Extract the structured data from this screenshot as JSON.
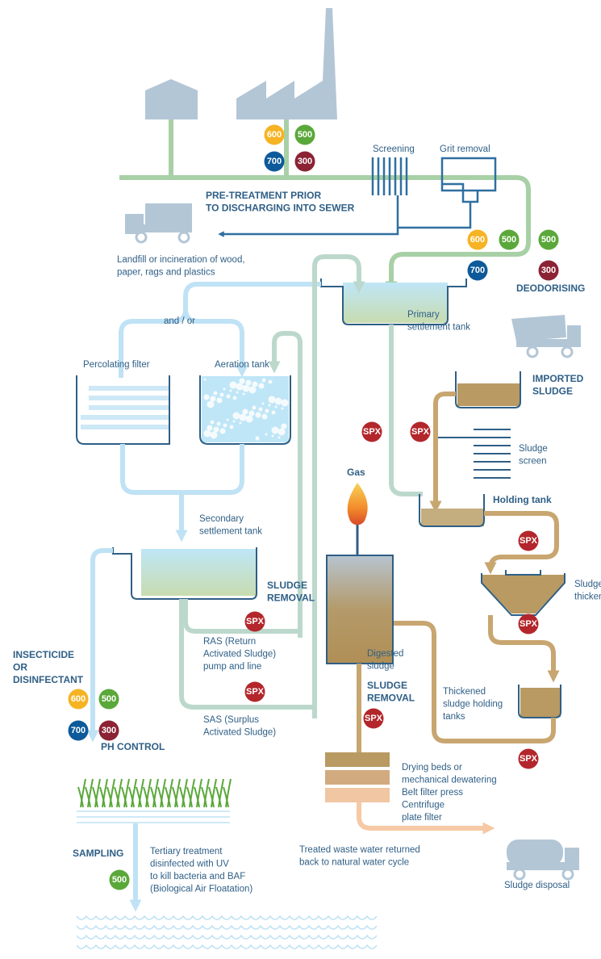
{
  "labels": [
    {
      "lines": [
        "Screening"
      ]
    },
    {
      "lines": [
        "Grit removal"
      ]
    },
    {
      "lines": [
        "PRE-TREATMENT PRIOR",
        "TO DISCHARGING INTO SEWER"
      ]
    },
    {
      "lines": [
        "Landfill or incineration of wood,",
        "paper, rags and plastics"
      ]
    },
    {
      "lines": [
        "DEODORISING"
      ]
    },
    {
      "lines": [
        "and / or"
      ]
    },
    {
      "lines": [
        "Primary",
        "settlement tank"
      ]
    },
    {
      "lines": [
        "Percolating  filter"
      ]
    },
    {
      "lines": [
        "Aeration tank"
      ]
    },
    {
      "lines": [
        "IMPORTED",
        "SLUDGE"
      ]
    },
    {
      "lines": [
        "Sludge",
        "screen"
      ]
    },
    {
      "lines": [
        "Gas"
      ]
    },
    {
      "lines": [
        "Holding tank"
      ]
    },
    {
      "lines": [
        "Secondary",
        "settlement tank"
      ]
    },
    {
      "lines": [
        "Sludge",
        "thickening"
      ]
    },
    {
      "lines": [
        "SLUDGE",
        "REMOVAL"
      ]
    },
    {
      "lines": [
        "RAS (Return",
        "Activated Sludge)",
        "pump and line"
      ]
    },
    {
      "lines": [
        "INSECTICIDE",
        "OR",
        "DISINFECTANT"
      ]
    },
    {
      "lines": [
        "Digested",
        "sludge"
      ]
    },
    {
      "lines": [
        "SLUDGE",
        "REMOVAL"
      ]
    },
    {
      "lines": [
        "Thickened",
        "sludge holding",
        "tanks"
      ]
    },
    {
      "lines": [
        "SAS (Surplus",
        "Activated Sludge)"
      ]
    },
    {
      "lines": [
        "PH CONTROL"
      ]
    },
    {
      "lines": [
        "Drying beds or",
        "mechanical dewatering",
        "Belt filter press",
        "Centrifuge",
        "plate filter"
      ]
    },
    {
      "lines": [
        "Treated waste water returned",
        "back to natural water cycle"
      ]
    },
    {
      "lines": [
        "SAMPLING"
      ]
    },
    {
      "lines": [
        "Tertiary treatment",
        "disinfected with UV",
        "to kill bacteria and BAF",
        "(Biological Air Floatation)"
      ]
    },
    {
      "lines": [
        "Sludge disposal"
      ]
    }
  ],
  "badges": [
    {
      "text": "600",
      "color": "#f6b323"
    },
    {
      "text": "500",
      "color": "#5aa83a"
    },
    {
      "text": "700",
      "color": "#0d5a9a"
    },
    {
      "text": "300",
      "color": "#8b2335"
    },
    {
      "text": "600",
      "color": "#f6b323"
    },
    {
      "text": "500",
      "color": "#5aa83a"
    },
    {
      "text": "500",
      "color": "#5aa83a"
    },
    {
      "text": "700",
      "color": "#0d5a9a"
    },
    {
      "text": "300",
      "color": "#8b2335"
    },
    {
      "text": "SPX",
      "color": "#b3262b"
    },
    {
      "text": "SPX",
      "color": "#b3262b"
    },
    {
      "text": "SPX",
      "color": "#b3262b"
    },
    {
      "text": "SPX",
      "color": "#b3262b"
    },
    {
      "text": "SPX",
      "color": "#b3262b"
    },
    {
      "text": "SPX",
      "color": "#b3262b"
    },
    {
      "text": "SPX",
      "color": "#b3262b"
    },
    {
      "text": "SPX",
      "color": "#b3262b"
    },
    {
      "text": "600",
      "color": "#f6b323"
    },
    {
      "text": "500",
      "color": "#5aa83a"
    },
    {
      "text": "700",
      "color": "#0d5a9a"
    },
    {
      "text": "300",
      "color": "#8b2335"
    },
    {
      "text": "500",
      "color": "#5aa83a"
    }
  ]
}
